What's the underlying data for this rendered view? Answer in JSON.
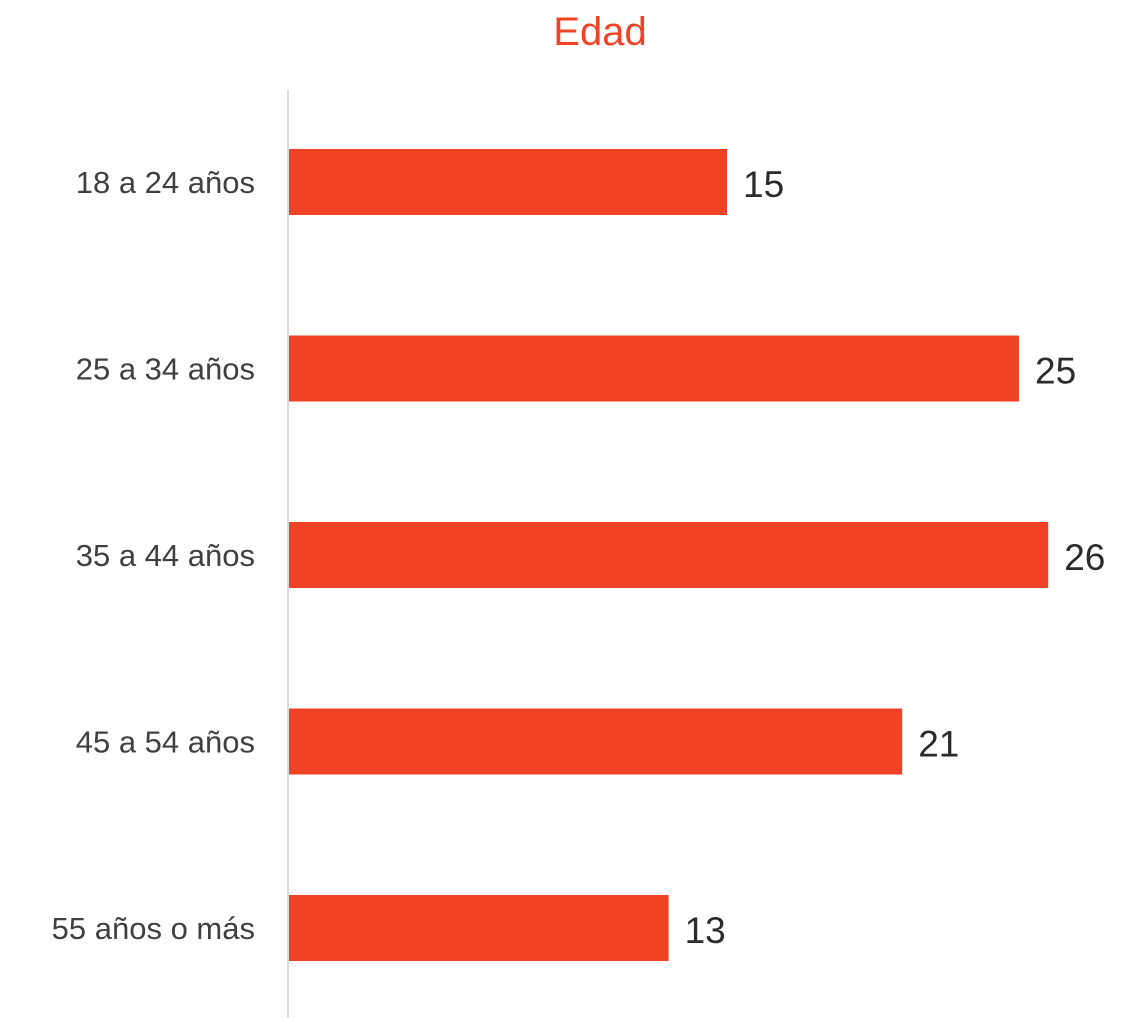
{
  "colors": {
    "bar": "#f04325",
    "title": "#f04325",
    "axis": "#d9d9d9"
  },
  "chart_data": {
    "type": "bar",
    "orientation": "horizontal",
    "title": "Edad",
    "categories": [
      "18 a 24 años",
      "25 a 34 años",
      "35 a 44 años",
      "45 a 54 años",
      "55 años o más"
    ],
    "values": [
      15,
      25,
      26,
      21,
      13
    ],
    "data_labels": [
      "15",
      "25",
      "26",
      "21",
      "13"
    ],
    "xlim": [
      0,
      26
    ],
    "grid": false,
    "legend": "none"
  }
}
